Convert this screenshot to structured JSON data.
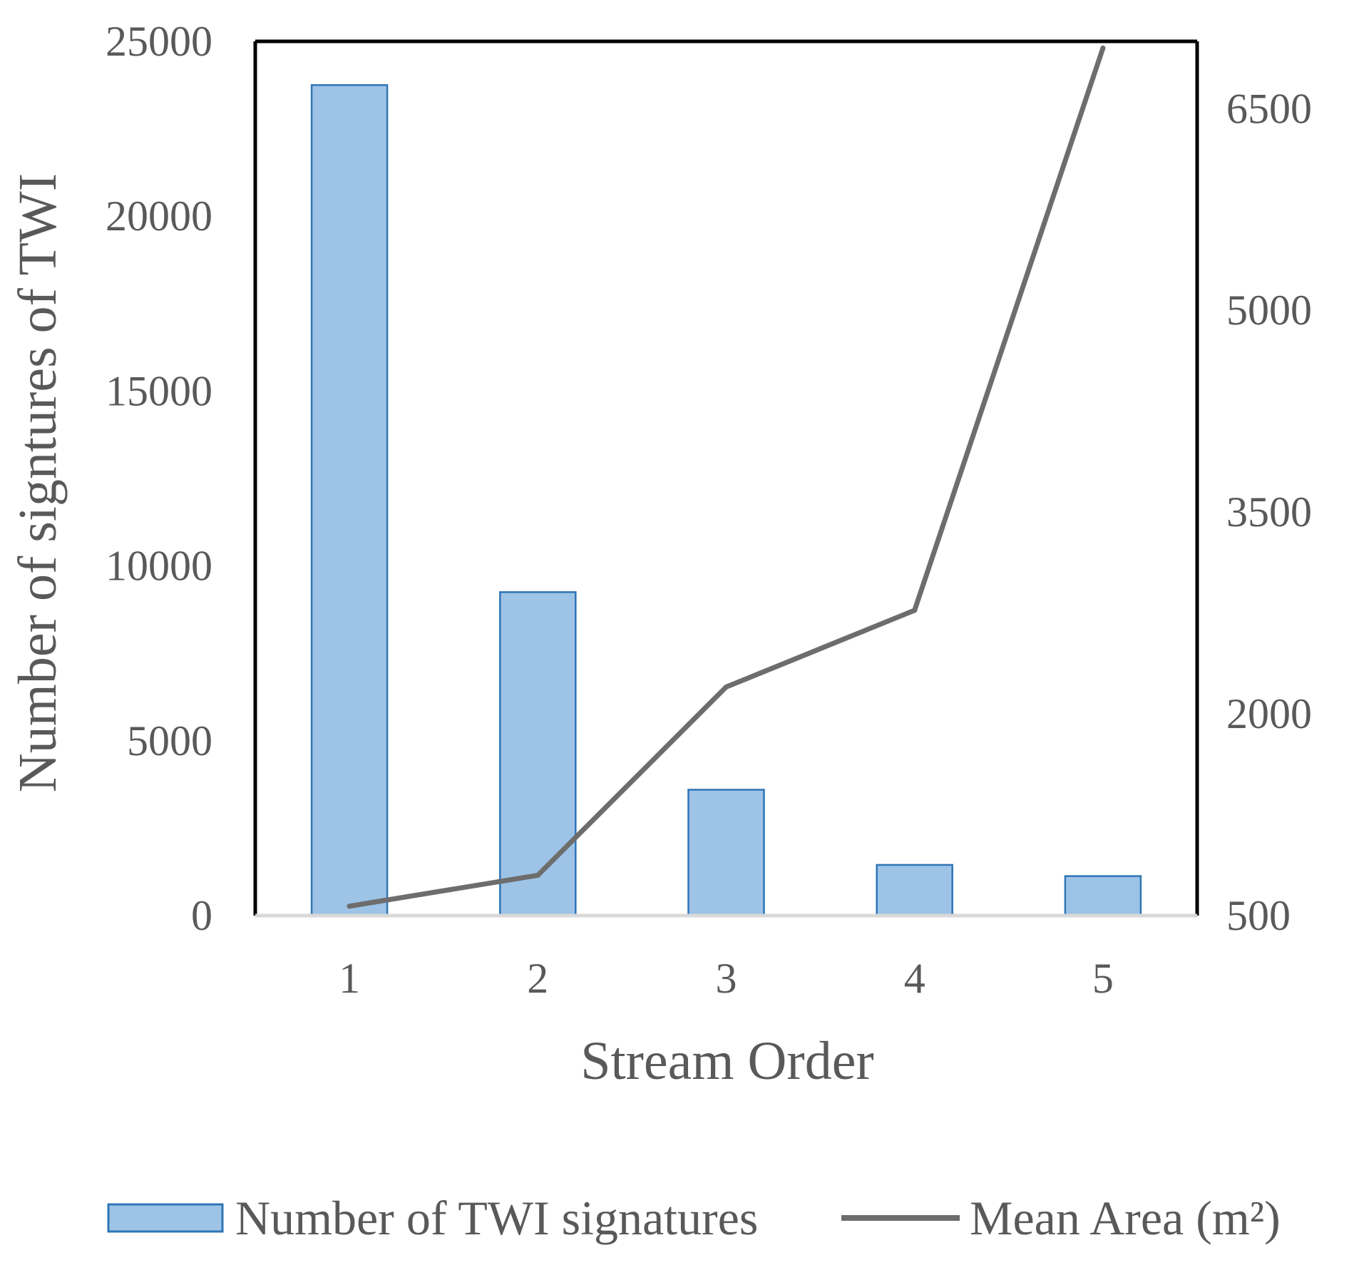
{
  "chart_data": {
    "type": "bar+line",
    "categories": [
      "1",
      "2",
      "3",
      "4",
      "5"
    ],
    "xlabel": "Stream Order",
    "ylabel_left": "Number of signtures of TWI",
    "ylabel_right": "",
    "ylim_left": [
      0,
      25000
    ],
    "ylim_right": [
      500,
      7000
    ],
    "yticks_left": [
      "0",
      "5000",
      "10000",
      "15000",
      "20000",
      "25000"
    ],
    "yticks_right": [
      "500",
      "2000",
      "3500",
      "5000",
      "6500"
    ],
    "grid": false,
    "legend_position": "bottom",
    "series": [
      {
        "name": "Number of TWI signatures",
        "type": "bar",
        "axis": "left",
        "color": "#9DC3E6",
        "edge_color": "#2E75B6",
        "values": [
          23750,
          9250,
          3600,
          1450,
          1130
        ]
      },
      {
        "name": "Mean Area (m²)",
        "type": "line",
        "axis": "right",
        "color": "#6D6D6D",
        "values": [
          570,
          800,
          2200,
          2770,
          6950
        ]
      }
    ]
  }
}
